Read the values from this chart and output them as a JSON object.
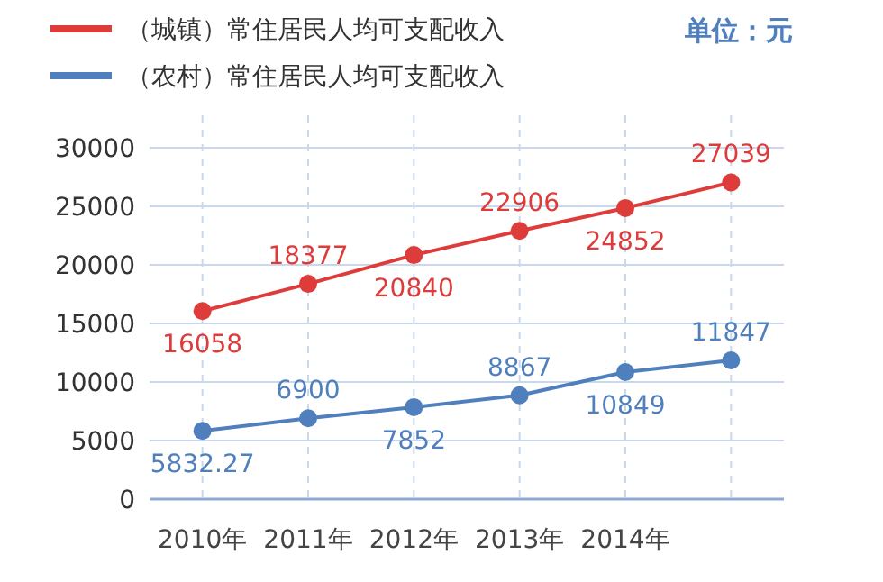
{
  "chart_data": {
    "type": "line",
    "categories": [
      "2010年",
      "2011年",
      "2012年",
      "2013年",
      "2014年",
      null
    ],
    "series": [
      {
        "name": "（城镇）常住居民人均可支配收入",
        "color": "#de3b3b",
        "values": [
          16058,
          18377,
          20840,
          22906,
          24852,
          27039
        ]
      },
      {
        "name": "（农村）常住居民人均可支配收入",
        "color": "#4f7fbd",
        "values": [
          5832.27,
          6900,
          7852,
          8867,
          10849,
          11847
        ]
      }
    ],
    "ylim": [
      0,
      30000
    ],
    "yticks": [
      0,
      5000,
      10000,
      15000,
      20000,
      25000,
      30000
    ],
    "grid": true,
    "legend": "top left",
    "marker": "circle",
    "line_style": "solid",
    "data_labels": true,
    "annotations": [
      "单位：元"
    ]
  }
}
